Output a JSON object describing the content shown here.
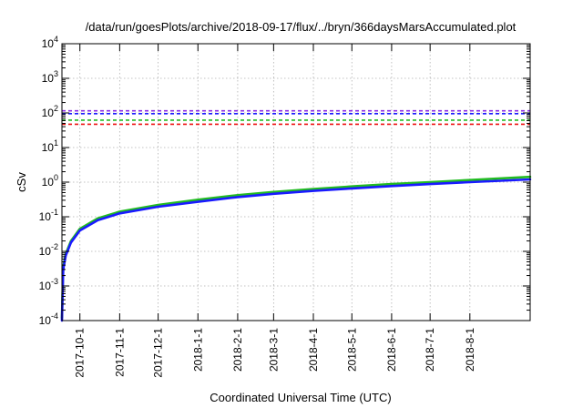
{
  "chart_data": {
    "type": "line",
    "title": "/data/run/goesPlots/archive/2018-09-17/flux/../bryn/366daysMarsAccumulated.plot",
    "xlabel": "Coordinated Universal Time (UTC)",
    "ylabel": "cSv",
    "yscale": "log",
    "ylim": [
      0.0001,
      10000
    ],
    "xlim": [
      "2017-09-17",
      "2018-09-17"
    ],
    "grid": true,
    "y_ticks": [
      {
        "base": "10",
        "exp": "-4",
        "value": 0.0001
      },
      {
        "base": "10",
        "exp": "-3",
        "value": 0.001
      },
      {
        "base": "10",
        "exp": "-2",
        "value": 0.01
      },
      {
        "base": "10",
        "exp": "-1",
        "value": 0.1
      },
      {
        "base": "10",
        "exp": "0",
        "value": 1
      },
      {
        "base": "10",
        "exp": "1",
        "value": 10
      },
      {
        "base": "10",
        "exp": "2",
        "value": 100
      },
      {
        "base": "10",
        "exp": "3",
        "value": 1000
      },
      {
        "base": "10",
        "exp": "4",
        "value": 10000
      }
    ],
    "x_ticks": [
      {
        "label": "2017-10-1",
        "date": "2017-10-01"
      },
      {
        "label": "2017-11-1",
        "date": "2017-11-01"
      },
      {
        "label": "2017-12-1",
        "date": "2017-12-01"
      },
      {
        "label": "2018-1-1",
        "date": "2018-01-01"
      },
      {
        "label": "2018-2-1",
        "date": "2018-02-01"
      },
      {
        "label": "2018-3-1",
        "date": "2018-03-01"
      },
      {
        "label": "2018-4-1",
        "date": "2018-04-01"
      },
      {
        "label": "2018-5-1",
        "date": "2018-05-01"
      },
      {
        "label": "2018-6-1",
        "date": "2018-06-01"
      },
      {
        "label": "2018-7-1",
        "date": "2018-07-01"
      },
      {
        "label": "2018-8-1",
        "date": "2018-08-01"
      }
    ],
    "reference_lines": [
      {
        "y": 115,
        "color": "#8a2be2",
        "style": "dashed"
      },
      {
        "y": 95,
        "color": "#1a1aff",
        "style": "dashed"
      },
      {
        "y": 62,
        "color": "#22bb22",
        "style": "dashed"
      },
      {
        "y": 47,
        "color": "#ee1111",
        "style": "dashed"
      }
    ],
    "series": [
      {
        "color": "#22bb22",
        "x": [
          "2017-09-17",
          "2017-09-18",
          "2017-09-20",
          "2017-09-24",
          "2017-10-01",
          "2017-10-15",
          "2017-11-01",
          "2017-12-01",
          "2018-01-01",
          "2018-02-01",
          "2018-03-01",
          "2018-04-01",
          "2018-05-01",
          "2018-06-01",
          "2018-07-01",
          "2018-08-01",
          "2018-09-17"
        ],
        "y": [
          0.00012,
          0.0035,
          0.0085,
          0.02,
          0.045,
          0.09,
          0.14,
          0.22,
          0.31,
          0.42,
          0.52,
          0.63,
          0.75,
          0.88,
          1.0,
          1.15,
          1.42
        ]
      },
      {
        "color": "#1a1aff",
        "x": [
          "2017-09-17",
          "2017-09-18",
          "2017-09-20",
          "2017-09-24",
          "2017-10-01",
          "2017-10-15",
          "2017-11-01",
          "2017-12-01",
          "2018-01-01",
          "2018-02-01",
          "2018-03-01",
          "2018-04-01",
          "2018-05-01",
          "2018-06-01",
          "2018-07-01",
          "2018-08-01",
          "2018-09-17"
        ],
        "y": [
          0.0001,
          0.003,
          0.0075,
          0.018,
          0.04,
          0.08,
          0.125,
          0.195,
          0.27,
          0.37,
          0.46,
          0.56,
          0.66,
          0.77,
          0.88,
          1.0,
          1.2
        ]
      }
    ]
  }
}
